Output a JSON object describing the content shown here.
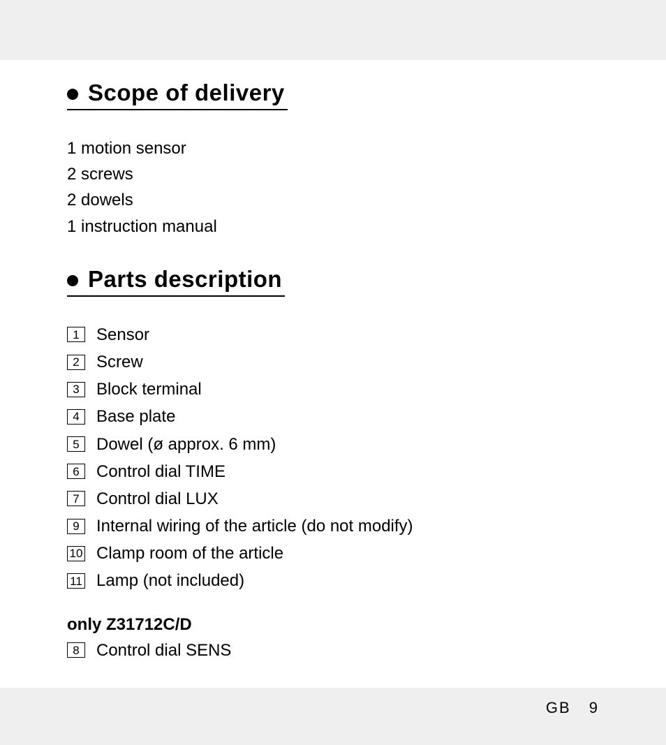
{
  "page": {
    "background_outer": "#efefef",
    "background_inner": "#ffffff",
    "footer_country": "GB",
    "footer_page": "9"
  },
  "sections": {
    "scope": {
      "title": "Scope of delivery",
      "items": [
        "1 motion sensor",
        "2 screws",
        "2 dowels",
        "1 instruction manual"
      ]
    },
    "parts": {
      "title": "Parts description",
      "items": [
        {
          "num": "1",
          "label": "Sensor"
        },
        {
          "num": "2",
          "label": "Screw"
        },
        {
          "num": "3",
          "label": "Block terminal"
        },
        {
          "num": "4",
          "label": "Base plate"
        },
        {
          "num": "5",
          "label": "Dowel (ø approx. 6 mm)"
        },
        {
          "num": "6",
          "label": "Control dial TIME"
        },
        {
          "num": "7",
          "label": "Control dial LUX"
        },
        {
          "num": "9",
          "label": "Internal wiring of the article (do not modify)"
        },
        {
          "num": "10",
          "label": "Clamp room of the article"
        },
        {
          "num": "11",
          "label": "Lamp (not included)"
        }
      ],
      "subset_title": "only Z31712C/D",
      "subset_items": [
        {
          "num": "8",
          "label": "Control dial SENS"
        }
      ]
    }
  }
}
